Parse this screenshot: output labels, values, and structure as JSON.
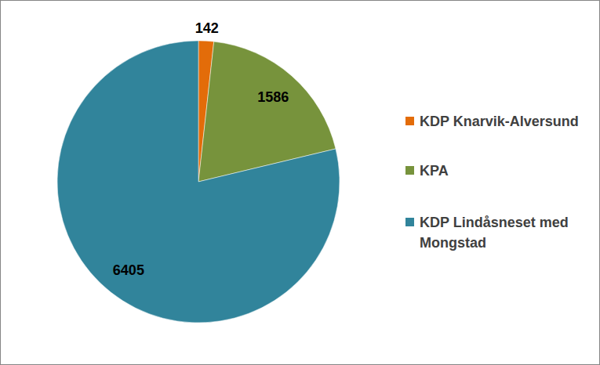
{
  "chart_data": {
    "type": "pie",
    "categories": [
      "KDP Knarvik-Alversund",
      "KPA",
      "KDP Lindåsneset med Mongstad"
    ],
    "values": [
      142,
      1586,
      6405
    ],
    "colors": [
      "#E36C09",
      "#77933C",
      "#31849B"
    ],
    "data_labels": true
  }
}
